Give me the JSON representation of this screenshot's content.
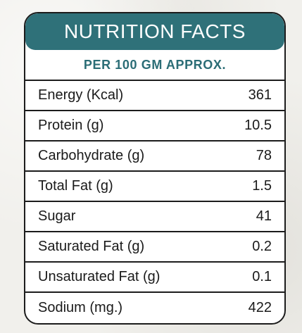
{
  "theme": {
    "header_bg": "#2f7179",
    "subtitle_color": "#2b6d76"
  },
  "header": {
    "title": "NUTRITION FACTS",
    "subtitle": "PER 100 GM APPROX."
  },
  "rows": [
    {
      "label": "Energy (Kcal)",
      "value": "361"
    },
    {
      "label": "Protein (g)",
      "value": "10.5"
    },
    {
      "label": "Carbohydrate (g)",
      "value": "78"
    },
    {
      "label": "Total Fat (g)",
      "value": "1.5"
    },
    {
      "label": "Sugar",
      "value": "41"
    },
    {
      "label": "Saturated Fat (g)",
      "value": "0.2"
    },
    {
      "label": "Unsaturated Fat (g)",
      "value": "0.1"
    },
    {
      "label": "Sodium (mg.)",
      "value": "422"
    }
  ]
}
